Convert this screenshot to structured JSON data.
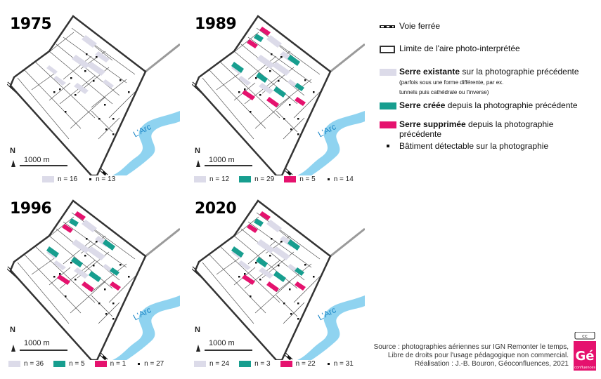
{
  "panels": [
    {
      "year": "1975",
      "scale": "1000 m",
      "north": "N",
      "river": "L'Arc",
      "counts": [
        {
          "kind": "existing",
          "label": "n = 16"
        },
        {
          "kind": "dot",
          "label": "n = 13"
        }
      ]
    },
    {
      "year": "1989",
      "scale": "1000 m",
      "north": "N",
      "river": "L'Arc",
      "counts": [
        {
          "kind": "existing",
          "label": "n = 12"
        },
        {
          "kind": "created",
          "label": "n = 29"
        },
        {
          "kind": "removed",
          "label": "n = 5"
        },
        {
          "kind": "dot",
          "label": "n = 14"
        }
      ]
    },
    {
      "year": "1996",
      "scale": "1000 m",
      "north": "N",
      "river": "L'Arc",
      "counts": [
        {
          "kind": "existing",
          "label": "n = 36"
        },
        {
          "kind": "created",
          "label": "n = 5"
        },
        {
          "kind": "removed",
          "label": "n = 1"
        },
        {
          "kind": "dot",
          "label": "n = 27"
        }
      ]
    },
    {
      "year": "2020",
      "scale": "1000 m",
      "north": "N",
      "river": "L'Arc",
      "counts": [
        {
          "kind": "existing",
          "label": "n = 24"
        },
        {
          "kind": "created",
          "label": "n = 3"
        },
        {
          "kind": "removed",
          "label": "n = 22"
        },
        {
          "kind": "dot",
          "label": "n = 31"
        }
      ]
    }
  ],
  "legend": {
    "railway": "Voie ferrée",
    "boundary": "Limite de l'aire photo-interprétée",
    "existing_bold": "Serre existante",
    "existing_rest": " sur la photographie précédente",
    "existing_sub1": "(parfois sous une forme différente, par ex.",
    "existing_sub2": "tunnels puis cathédrale ou l'inverse)",
    "created_bold": "Serre créée",
    "created_rest": " depuis la photographie précédente",
    "removed_bold": "Serre supprimée",
    "removed_rest": " depuis la photographie précédente",
    "building": "Bâtiment détectable sur la photographie"
  },
  "source": {
    "line1": "Source : photographies aériennes sur IGN Remonter le temps,",
    "line2": "Libre de droits pour l'usage pédagogique non commercial.",
    "line3": "Réalisation : J.-B. Bouron, Géoconfluences, 2021"
  },
  "logo": {
    "cc": "cc",
    "letter": "Gé",
    "caption": "confluences"
  },
  "colors": {
    "existing": "#dcdbe9",
    "created": "#179e8f",
    "removed": "#e5126e",
    "river": "#8fd3f0",
    "boundary": "#333333"
  }
}
